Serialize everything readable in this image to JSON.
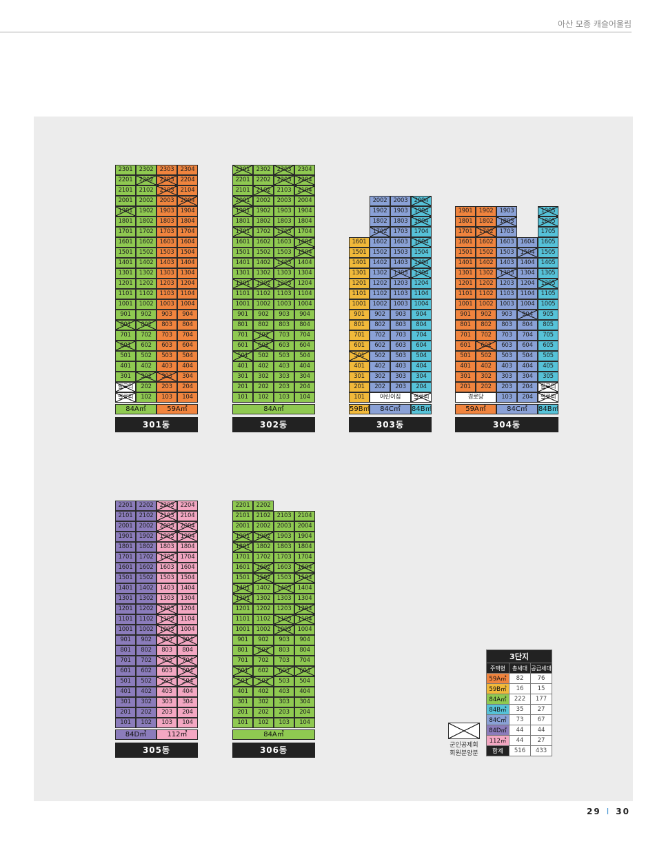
{
  "header": {
    "title": "아산 모종 캐슬어울림"
  },
  "colors": {
    "59A": "#f0843e",
    "59B": "#f1b93a",
    "84A": "#8fc951",
    "84B": "#56c2d8",
    "84C": "#8aa1d6",
    "84D": "#8b7cbb",
    "112": "#f3a7c2",
    "empty": "#ffffff"
  },
  "buildings": [
    {
      "name": "301동",
      "x0": 167,
      "top": 239,
      "rows": 23,
      "cols": 4,
      "row_colors": [
        [
          "84A",
          "84A",
          "59A",
          "59A"
        ]
      ],
      "crossed": [
        "2202",
        "2203",
        "2103",
        "2004",
        "1901",
        "801",
        "802",
        "601",
        "302",
        "303",
        "필로티"
      ],
      "cells": {
        "1": [
          {
            "t": "필로티"
          },
          {
            "t": "102"
          },
          {
            "t": "103"
          },
          {
            "t": "104"
          }
        ],
        "2": [
          {
            "t": "필로티"
          },
          {
            "t": "202"
          },
          {
            "t": "203"
          },
          {
            "t": "204"
          }
        ]
      },
      "types": [
        {
          "label": "84A㎡",
          "span": 2,
          "c": "84A"
        },
        {
          "label": "59A㎡",
          "span": 2,
          "c": "59A"
        }
      ]
    },
    {
      "name": "302동",
      "x0": 337,
      "top": 239,
      "rows": 23,
      "cols": 4,
      "row_colors": [
        [
          "84A",
          "84A",
          "84A",
          "84A"
        ]
      ],
      "crossed": [
        "2301",
        "2303",
        "2202",
        "2203",
        "2204",
        "2102",
        "2104",
        "2001",
        "1901",
        "1701",
        "1703",
        "1604",
        "1504",
        "1403",
        "1201",
        "1202",
        "1203",
        "802?",
        "702",
        "602",
        "501"
      ],
      "types": [
        {
          "label": "84A㎡",
          "span": 4,
          "c": "84A"
        }
      ]
    },
    {
      "name": "303동",
      "x0": 506,
      "top": 284,
      "rows": 20,
      "cols": 4,
      "row_colors": [
        [
          "59B",
          "84C",
          "84C",
          "84B"
        ]
      ],
      "crossed": [
        "2004",
        "1904x",
        "1804",
        "1702",
        "1604",
        "1404",
        "1303",
        "1304",
        "501",
        "104p"
      ],
      "types": [
        {
          "label": "59B㎡",
          "span": 1,
          "c": "59B"
        },
        {
          "label": "84C㎡",
          "span": 2,
          "c": "84C"
        },
        {
          "label": "84B㎡",
          "span": 1,
          "c": "84B"
        }
      ]
    },
    {
      "name": "304동",
      "x0": 660,
      "top": 299,
      "rows": 19,
      "cols": 5,
      "row_colors": [
        [
          "59A",
          "59A",
          "84C",
          "84C",
          "84B"
        ]
      ],
      "types": [
        {
          "label": "59A㎡",
          "span": 2,
          "c": "59A"
        },
        {
          "label": "84C㎡",
          "span": 2,
          "c": "84C"
        },
        {
          "label": "84B㎡",
          "span": 1,
          "c": "84B"
        }
      ]
    },
    {
      "name": "305동",
      "x0": 167,
      "top": 726,
      "rows": 22,
      "cols": 4,
      "row_colors": [
        [
          "84D",
          "84D",
          "112",
          "112"
        ]
      ],
      "types": [
        {
          "label": "84D㎡",
          "span": 2,
          "c": "84D"
        },
        {
          "label": "112㎡",
          "span": 2,
          "c": "112"
        }
      ]
    },
    {
      "name": "306동",
      "x0": 337,
      "top": 726,
      "rows": 22,
      "cols": 4,
      "row_colors": [
        [
          "84A",
          "84A",
          "84A",
          "84A"
        ]
      ],
      "types": [
        {
          "label": "84A㎡",
          "span": 4,
          "c": "84A"
        }
      ]
    }
  ],
  "legend": {
    "line1": "군인공제회",
    "line2": "회원분양분"
  },
  "summary": {
    "title": "3단지",
    "headers": [
      "주택형",
      "총세대",
      "공급세대"
    ],
    "rows": [
      {
        "type": "59A㎡",
        "total": "82",
        "supply": "76",
        "c": "59A"
      },
      {
        "type": "59B㎡",
        "total": "16",
        "supply": "15",
        "c": "59B"
      },
      {
        "type": "84A㎡",
        "total": "222",
        "supply": "177",
        "c": "84A"
      },
      {
        "type": "84B㎡",
        "total": "35",
        "supply": "27",
        "c": "84B"
      },
      {
        "type": "84C㎡",
        "total": "73",
        "supply": "67",
        "c": "84C"
      },
      {
        "type": "84D㎡",
        "total": "44",
        "supply": "44",
        "c": "84D"
      },
      {
        "type": "112㎡",
        "total": "44",
        "supply": "27",
        "c": "112"
      },
      {
        "type": "합계",
        "total": "516",
        "supply": "433",
        "c": "total"
      }
    ]
  },
  "page_numbers": {
    "left": "29",
    "sep": "I",
    "right": "30"
  }
}
